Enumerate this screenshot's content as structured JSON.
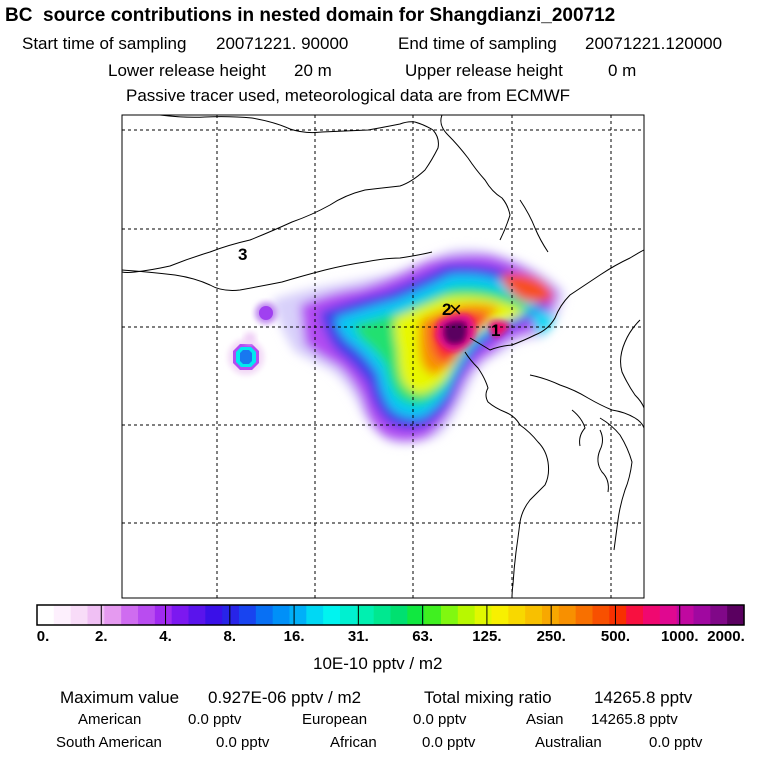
{
  "title": "BC  source contributions in nested domain for Shangdianzi_200712",
  "header": {
    "start_label": "Start time of sampling",
    "start_value": "20071221. 90000",
    "end_label": "End time of sampling",
    "end_value": "20071221.120000",
    "lower_label": "Lower release height",
    "lower_value": "20 m",
    "upper_label": "Upper release height",
    "upper_value": "0 m",
    "note": "Passive tracer used, meteorological data are from ECMWF"
  },
  "map": {
    "labels": [
      "3",
      "2",
      "1"
    ],
    "receptor_marker": "×"
  },
  "colorbar": {
    "tick_labels": [
      "0.",
      "2.",
      "4.",
      "8.",
      "16.",
      "31.",
      "63.",
      "125.",
      "250.",
      "500.",
      "1000.",
      "2000."
    ],
    "colors": [
      "#ffffff",
      "#fdf0fd",
      "#f8dcf8",
      "#f0c0f4",
      "#e59af0",
      "#cf6cf0",
      "#b94cf0",
      "#a02af0",
      "#7c18f0",
      "#5a14ec",
      "#3a10e8",
      "#2824e8",
      "#1844f0",
      "#0870f4",
      "#0090f8",
      "#00b0f8",
      "#00d8f4",
      "#00f4f0",
      "#00f0d0",
      "#00f0b0",
      "#00e890",
      "#00e070",
      "#10e840",
      "#40f020",
      "#80f810",
      "#b8f800",
      "#e0f800",
      "#f8f000",
      "#f8d800",
      "#f8c000",
      "#f8a800",
      "#f89000",
      "#f87000",
      "#f85000",
      "#f83000",
      "#f81040",
      "#f00870",
      "#e00890",
      "#c008a0",
      "#a008a0",
      "#800888",
      "#5a0060"
    ],
    "unit": "10E-10 pptv / m2"
  },
  "stats": {
    "max_label": "Maximum value",
    "max_value": "0.927E-06 pptv / m2",
    "total_label": "Total mixing ratio",
    "total_value": "14265.8 pptv"
  },
  "regions": [
    {
      "name": "American",
      "value": "0.0 pptv"
    },
    {
      "name": "European",
      "value": "0.0 pptv"
    },
    {
      "name": "Asian",
      "value": "14265.8 pptv"
    },
    {
      "name": "South American",
      "value": "0.0 pptv"
    },
    {
      "name": "African",
      "value": "0.0 pptv"
    },
    {
      "name": "Australian",
      "value": "0.0 pptv"
    }
  ]
}
